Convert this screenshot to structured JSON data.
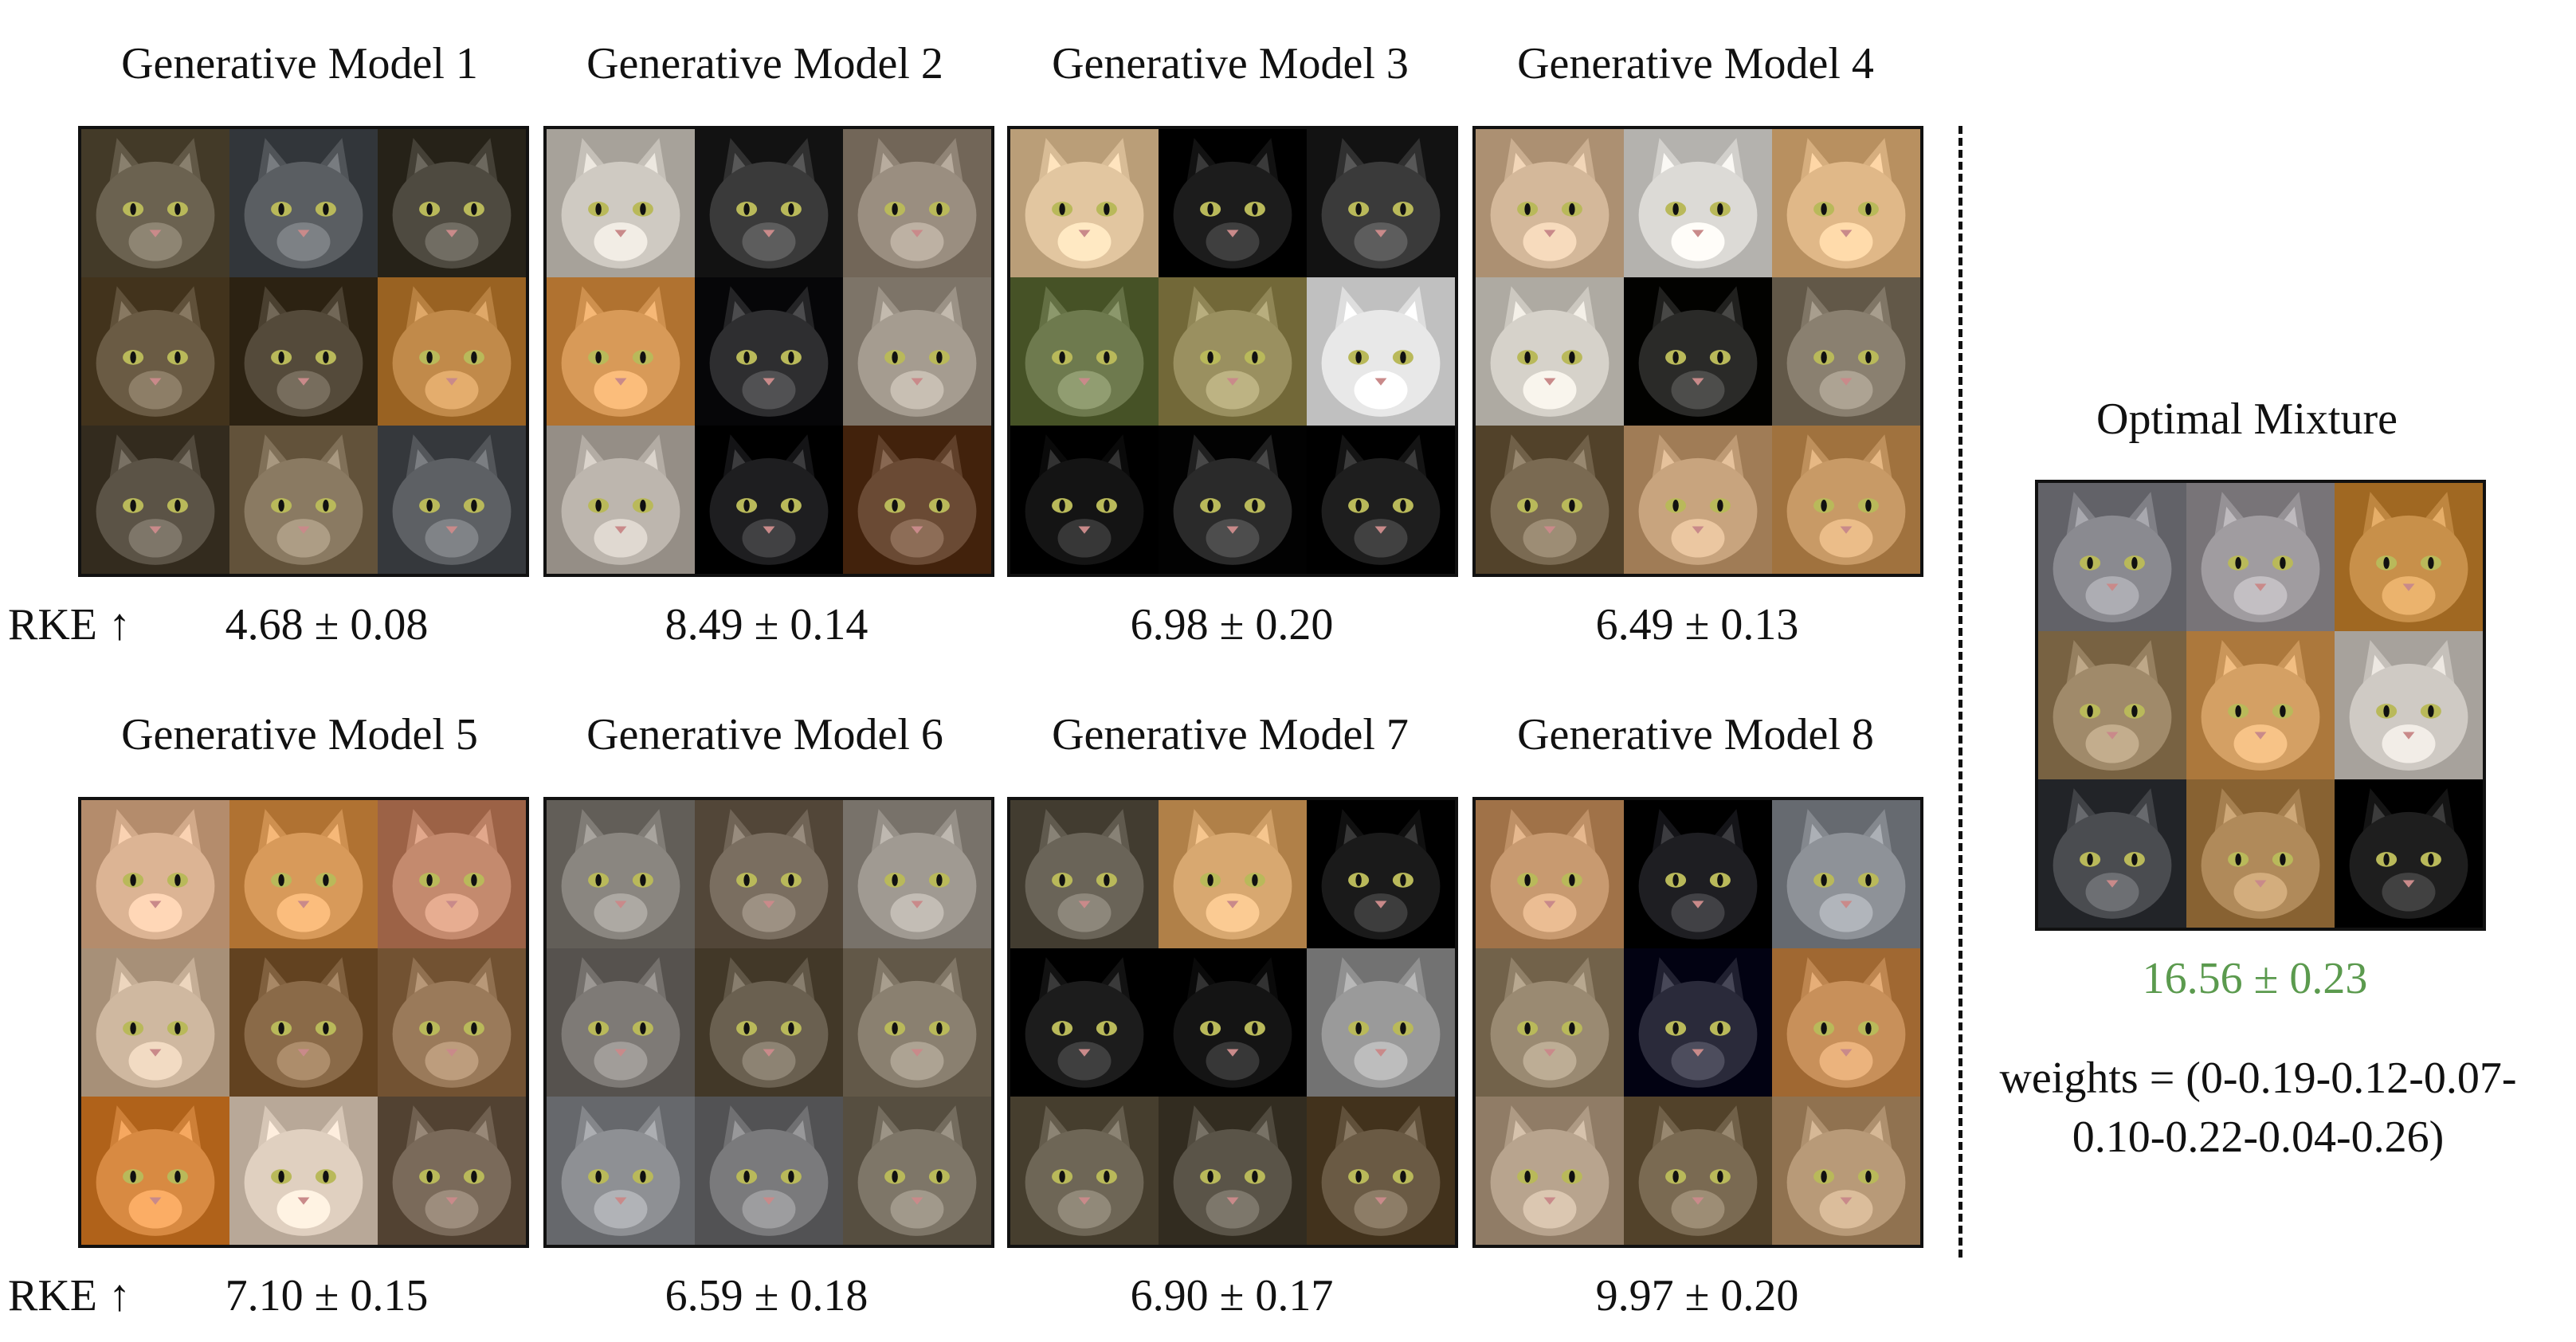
{
  "rke_label": "RKE ↑",
  "models": [
    {
      "title": "Generative Model 1",
      "score": "4.68 ± 0.08",
      "palette": [
        "#6b6250",
        "#5a5e62",
        "#4e4a40",
        "#6a5b44",
        "#544a3a",
        "#c18a4a",
        "#5b5346",
        "#8a7a62",
        "#5d6064"
      ]
    },
    {
      "title": "Generative Model 2",
      "score": "8.49 ± 0.14",
      "palette": [
        "#cfcac2",
        "#3a3a3a",
        "#9a8e80",
        "#d89a58",
        "#2e2e30",
        "#a59c90",
        "#bdb6ae",
        "#1e1e20",
        "#6a4a34"
      ]
    },
    {
      "title": "Generative Model 3",
      "score": "6.98 ± 0.20",
      "palette": [
        "#e2c6a0",
        "#1c1c1c",
        "#3a3a3a",
        "#6e7a4e",
        "#9a9060",
        "#e8e8e8",
        "#141414",
        "#2a2a2a",
        "#1e1e1e"
      ]
    },
    {
      "title": "Generative Model 4",
      "score": "6.49 ± 0.13",
      "palette": [
        "#d4b89a",
        "#dcdad6",
        "#e0b888",
        "#d6d2ca",
        "#2a2a28",
        "#8a8070",
        "#7a6a52",
        "#c8a47e",
        "#c89a66"
      ]
    },
    {
      "title": "Generative Model 5",
      "score": "7.10 ± 0.15",
      "palette": [
        "#dcb494",
        "#d89a5a",
        "#c48a6e",
        "#cfb8a0",
        "#8a6a48",
        "#9a7a5a",
        "#d88a42",
        "#e0d0c0",
        "#7a6a5a"
      ]
    },
    {
      "title": "Generative Model 6",
      "score": "6.59 ± 0.18",
      "palette": [
        "#8a8680",
        "#7a6e60",
        "#a09a92",
        "#7e7a76",
        "#6a6050",
        "#8a8070",
        "#8e9094",
        "#7a7a7c",
        "#7e7668"
      ]
    },
    {
      "title": "Generative Model 7",
      "score": "6.90 ± 0.17",
      "palette": [
        "#6a6458",
        "#d8a870",
        "#1a1a1a",
        "#1c1c1c",
        "#141414",
        "#9a9a9a",
        "#6e6656",
        "#5a5448",
        "#6a5a44"
      ]
    },
    {
      "title": "Generative Model 8",
      "score": "9.97 ± 0.20",
      "palette": [
        "#c89a70",
        "#1e1e22",
        "#8e9298",
        "#9a8a72",
        "#2a2a3a",
        "#c8905a",
        "#b8a48e",
        "#7a6a52",
        "#b89a78"
      ]
    }
  ],
  "mixture": {
    "title": "Optimal Mixture",
    "score": "16.56 ± 0.23",
    "score_color": "#5b9a4e",
    "weights_line1": "weights = (0-0.19-0.12-0.07-",
    "weights_line2": "0.10-0.22-0.04-0.26)",
    "palette": [
      "#8a8a90",
      "#a09ca0",
      "#c8904a",
      "#a08a6a",
      "#d4a064",
      "#cfcac4",
      "#4a4c50",
      "#b08a5a",
      "#1e1e1e"
    ]
  }
}
